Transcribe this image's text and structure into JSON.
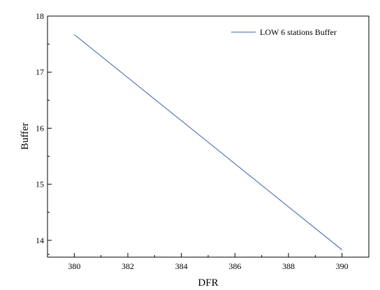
{
  "chart_data": {
    "type": "line",
    "title": "",
    "xlabel": "DFR",
    "ylabel": "Buffer",
    "xlim": [
      379,
      391
    ],
    "ylim": [
      13.7,
      18
    ],
    "xticks": [
      380,
      382,
      384,
      386,
      388,
      390
    ],
    "yticks": [
      14,
      15,
      16,
      17,
      18
    ],
    "grid": false,
    "legend_position": "top-right",
    "series": [
      {
        "name": "LOW 6 stations Buffer",
        "color": "#3a5fa8",
        "x": [
          380,
          390
        ],
        "y": [
          17.67,
          13.83
        ]
      }
    ]
  }
}
